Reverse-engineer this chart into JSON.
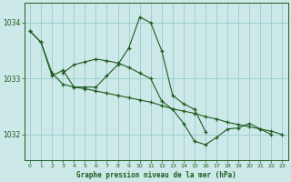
{
  "title": "Graphe pression niveau de la mer (hPa)",
  "background_color": "#cce8e8",
  "grid_color": "#99cccc",
  "line_color": "#1e5c1e",
  "xlim": [
    -0.5,
    23.5
  ],
  "ylim": [
    1031.55,
    1034.35
  ],
  "yticks": [
    1032,
    1033,
    1034
  ],
  "xticks": [
    0,
    1,
    2,
    3,
    4,
    5,
    6,
    7,
    8,
    9,
    10,
    11,
    12,
    13,
    14,
    15,
    16,
    17,
    18,
    19,
    20,
    21,
    22,
    23
  ],
  "series": [
    {
      "x": [
        0,
        1,
        2,
        3,
        4,
        5,
        6,
        7,
        8,
        9,
        10,
        11,
        12,
        13,
        14,
        15,
        16
      ],
      "y": [
        1033.85,
        1033.65,
        1033.05,
        1033.15,
        1032.85,
        1032.85,
        1032.85,
        1033.05,
        1033.25,
        1033.55,
        1034.1,
        1034.0,
        1033.5,
        1032.7,
        1032.55,
        1032.45,
        1032.05
      ]
    },
    {
      "x": [
        0,
        1,
        2,
        3,
        4,
        5,
        6,
        7,
        8,
        9,
        10,
        11,
        12,
        13,
        14,
        15,
        16,
        17,
        18,
        19,
        20,
        21,
        22,
        23
      ],
      "y": [
        1033.85,
        1033.65,
        1033.1,
        1032.9,
        1032.85,
        1032.82,
        1032.78,
        1032.74,
        1032.7,
        1032.66,
        1032.62,
        1032.58,
        1032.52,
        1032.46,
        1032.42,
        1032.38,
        1032.32,
        1032.28,
        1032.22,
        1032.18,
        1032.14,
        1032.1,
        1032.06,
        1032.0
      ]
    },
    {
      "x": [
        3,
        4,
        5,
        6,
        7,
        8,
        9,
        10,
        11,
        12,
        13,
        14,
        15,
        16,
        17,
        18,
        19,
        20,
        21,
        22
      ],
      "y": [
        1033.1,
        1033.25,
        1033.3,
        1033.35,
        1033.32,
        1033.28,
        1033.2,
        1033.1,
        1033.0,
        1032.6,
        1032.45,
        1032.2,
        1031.88,
        1031.82,
        1031.95,
        1032.1,
        1032.12,
        1032.2,
        1032.1,
        1032.0
      ]
    }
  ]
}
